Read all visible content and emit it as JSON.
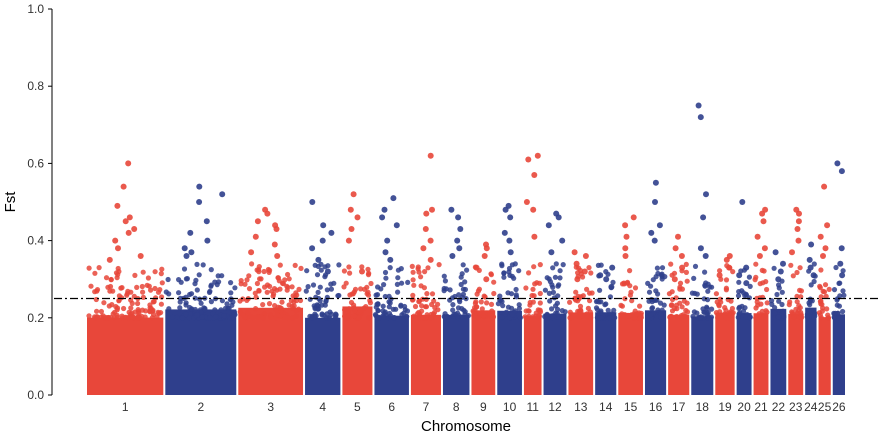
{
  "chart_data": {
    "type": "scatter",
    "xlabel": "Chromosome",
    "ylabel": "Fst",
    "ylim": [
      0,
      1.0
    ],
    "yticks": [
      "0.0",
      "0.2",
      "0.4",
      "0.6",
      "0.8",
      "1.0"
    ],
    "grid": false,
    "threshold": 0.25,
    "colors": {
      "odd": "#E8473A",
      "even": "#2F3F8C",
      "threshold": "#000000"
    },
    "chromosomes": [
      {
        "label": "1",
        "weight": 8.8,
        "top": [
          0.6,
          0.54,
          0.49,
          0.46,
          0.45,
          0.43,
          0.42,
          0.4,
          0.38,
          0.36,
          0.35
        ]
      },
      {
        "label": "2",
        "weight": 8.2,
        "top": [
          0.54,
          0.52,
          0.5,
          0.45,
          0.42,
          0.4,
          0.38,
          0.37,
          0.36
        ]
      },
      {
        "label": "3",
        "weight": 7.5,
        "top": [
          0.48,
          0.47,
          0.45,
          0.44,
          0.43,
          0.41,
          0.39,
          0.37,
          0.36
        ]
      },
      {
        "label": "4",
        "weight": 4.2,
        "top": [
          0.5,
          0.44,
          0.42,
          0.4,
          0.38,
          0.35,
          0.32
        ]
      },
      {
        "label": "5",
        "weight": 3.6,
        "top": [
          0.52,
          0.48,
          0.46,
          0.43,
          0.4,
          0.32
        ]
      },
      {
        "label": "6",
        "weight": 4.1,
        "top": [
          0.51,
          0.48,
          0.46,
          0.44,
          0.4,
          0.37,
          0.35
        ]
      },
      {
        "label": "7",
        "weight": 3.6,
        "top": [
          0.62,
          0.48,
          0.47,
          0.43,
          0.4,
          0.38,
          0.35
        ]
      },
      {
        "label": "8",
        "weight": 3.2,
        "top": [
          0.48,
          0.46,
          0.43,
          0.4,
          0.38,
          0.36
        ]
      },
      {
        "label": "9",
        "weight": 2.9,
        "top": [
          0.39,
          0.38,
          0.36,
          0.33,
          0.3
        ]
      },
      {
        "label": "10",
        "weight": 3.0,
        "top": [
          0.49,
          0.48,
          0.46,
          0.42,
          0.4,
          0.37
        ]
      },
      {
        "label": "11",
        "weight": 2.2,
        "top": [
          0.62,
          0.61,
          0.57,
          0.5,
          0.48,
          0.41
        ]
      },
      {
        "label": "12",
        "weight": 2.8,
        "top": [
          0.47,
          0.46,
          0.44,
          0.4,
          0.37
        ]
      },
      {
        "label": "13",
        "weight": 3.0,
        "top": [
          0.37,
          0.36,
          0.34,
          0.32,
          0.3
        ]
      },
      {
        "label": "14",
        "weight": 2.6,
        "top": [
          0.33,
          0.31,
          0.3,
          0.28
        ]
      },
      {
        "label": "15",
        "weight": 3.0,
        "top": [
          0.46,
          0.44,
          0.41,
          0.38,
          0.36
        ]
      },
      {
        "label": "16",
        "weight": 2.6,
        "top": [
          0.55,
          0.5,
          0.44,
          0.42,
          0.4
        ]
      },
      {
        "label": "17",
        "weight": 2.6,
        "top": [
          0.41,
          0.38,
          0.36,
          0.33,
          0.3
        ]
      },
      {
        "label": "18",
        "weight": 2.7,
        "top": [
          0.75,
          0.72,
          0.52,
          0.46,
          0.38,
          0.36
        ]
      },
      {
        "label": "19",
        "weight": 2.4,
        "top": [
          0.36,
          0.35,
          0.33,
          0.31
        ]
      },
      {
        "label": "20",
        "weight": 1.9,
        "top": [
          0.5,
          0.33,
          0.31,
          0.29
        ]
      },
      {
        "label": "21",
        "weight": 1.9,
        "top": [
          0.48,
          0.47,
          0.45,
          0.41,
          0.38,
          0.36
        ]
      },
      {
        "label": "22",
        "weight": 2.0,
        "top": [
          0.37,
          0.34,
          0.32,
          0.3
        ]
      },
      {
        "label": "23",
        "weight": 1.9,
        "top": [
          0.48,
          0.47,
          0.45,
          0.43,
          0.4,
          0.37
        ]
      },
      {
        "label": "24",
        "weight": 1.5,
        "top": [
          0.39,
          0.35,
          0.33,
          0.31
        ]
      },
      {
        "label": "25",
        "weight": 1.6,
        "top": [
          0.54,
          0.44,
          0.41,
          0.38,
          0.36
        ]
      },
      {
        "label": "26",
        "weight": 1.6,
        "top": [
          0.6,
          0.58,
          0.38,
          0.34,
          0.31
        ]
      }
    ]
  }
}
